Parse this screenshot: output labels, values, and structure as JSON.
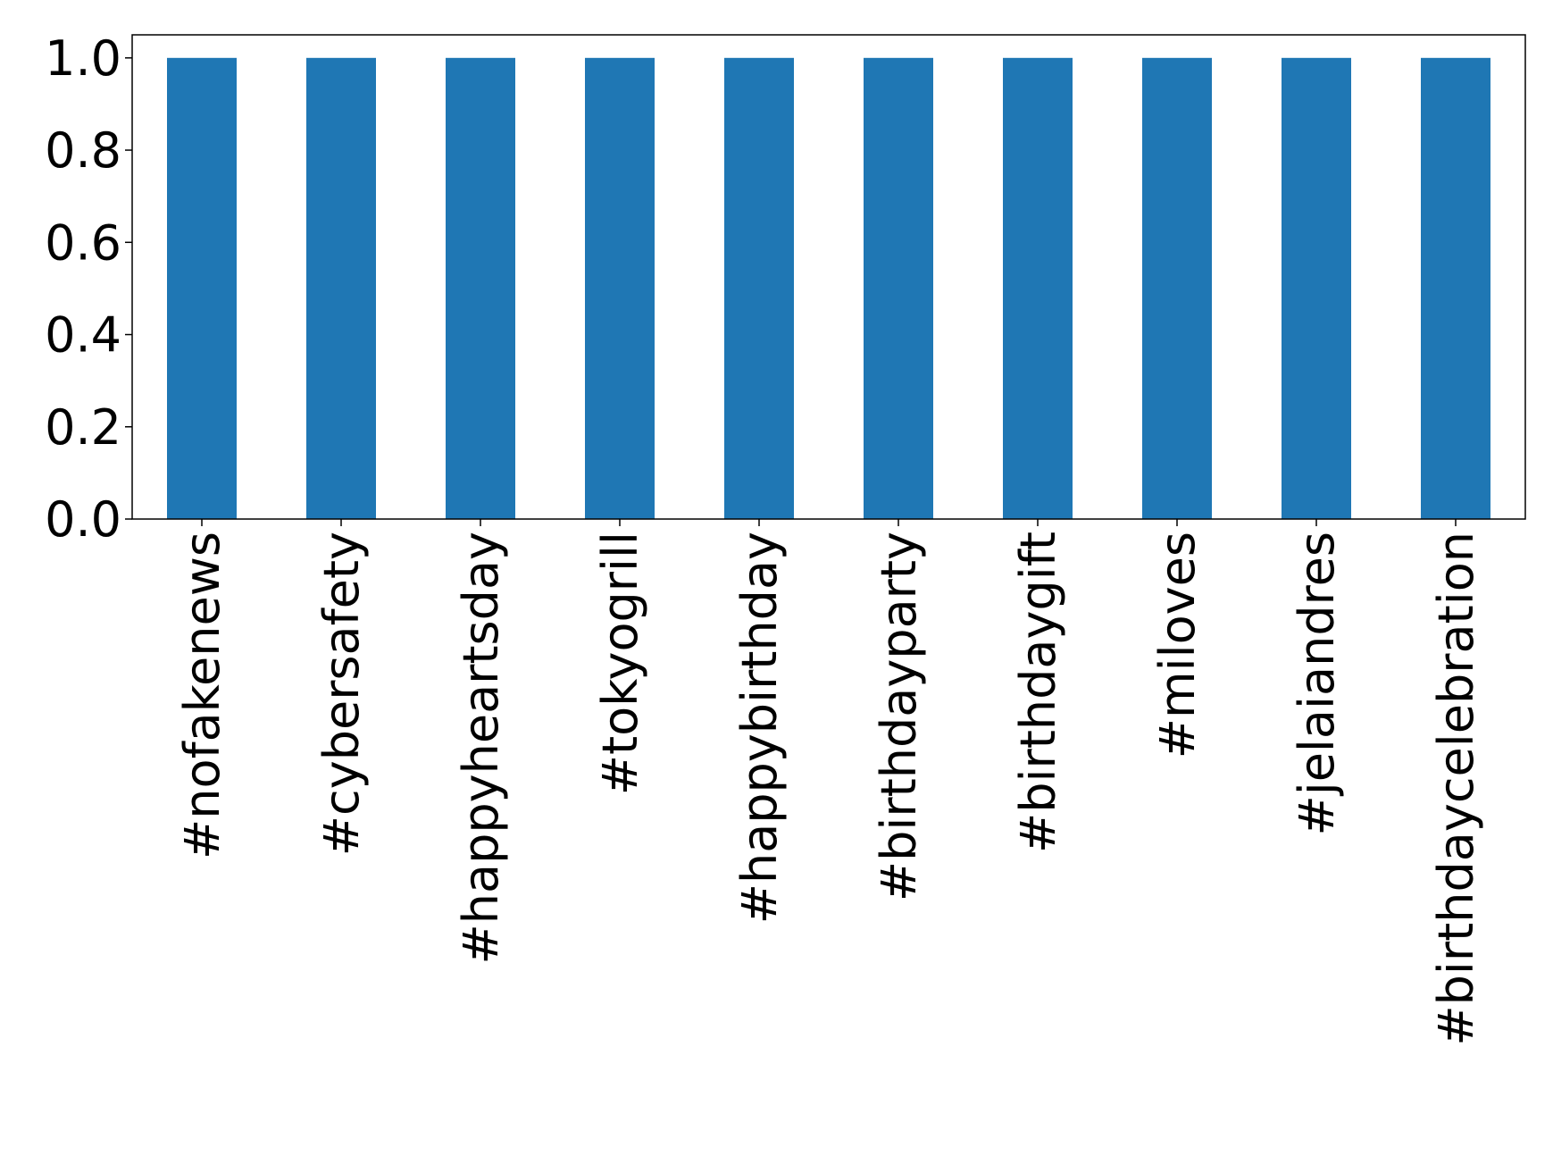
{
  "chart_data": {
    "type": "bar",
    "categories": [
      "#nofakenews",
      "#cybersafety",
      "#happyheartsday",
      "#tokyogrill",
      "#happybirthday",
      "#birthdayparty",
      "#birthdaygift",
      "#miloves",
      "#jelaiandres",
      "#birthdaycelebration"
    ],
    "values": [
      1,
      1,
      1,
      1,
      1,
      1,
      1,
      1,
      1,
      1
    ],
    "color": "#1f77b4",
    "ylim": [
      0,
      1.05
    ],
    "yticks": [
      {
        "value": 0,
        "label": "0.0"
      },
      {
        "value": 0.2,
        "label": "0.2"
      },
      {
        "value": 0.4,
        "label": "0.4"
      },
      {
        "value": 0.6,
        "label": "0.6"
      },
      {
        "value": 0.8,
        "label": "0.8"
      },
      {
        "value": 1,
        "label": "1.0"
      }
    ],
    "grid": false
  }
}
